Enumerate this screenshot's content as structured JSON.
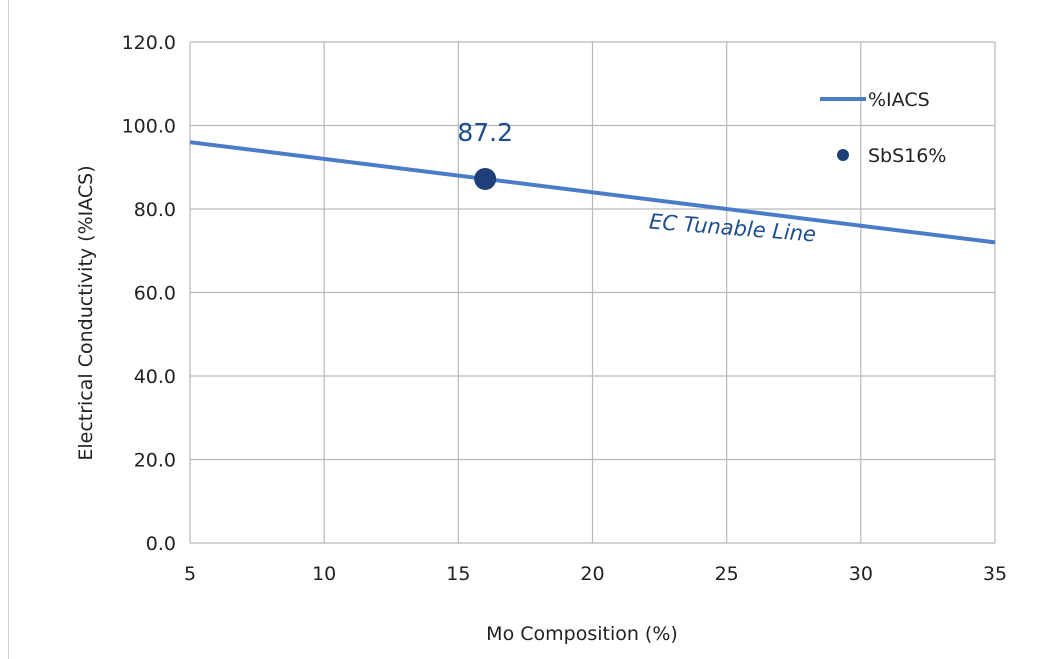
{
  "chart_data": {
    "type": "line",
    "xlabel": "Mo Composition (%)",
    "ylabel": "Electrical Conductivity  (%IACS)",
    "xlim": [
      5,
      35
    ],
    "ylim": [
      0,
      120
    ],
    "x_ticks": [
      "5",
      "10",
      "15",
      "20",
      "25",
      "30",
      "35"
    ],
    "y_ticks": [
      "0.0",
      "20.0",
      "40.0",
      "60.0",
      "80.0",
      "100.0",
      "120.0"
    ],
    "grid": true,
    "legend_position": "top-right",
    "series": [
      {
        "name": "%IACS",
        "kind": "line",
        "color": "#4a7cc7",
        "x": [
          5,
          35
        ],
        "y": [
          96,
          72
        ]
      },
      {
        "name": "SbS16%",
        "kind": "point",
        "color": "#1f3f7a",
        "x": [
          16
        ],
        "y": [
          87.2
        ]
      }
    ],
    "annotations": [
      {
        "text": "87.2",
        "x": 16,
        "y": 87.2
      },
      {
        "text": "EC Tunable Line",
        "x": 25,
        "y": 80
      }
    ]
  }
}
